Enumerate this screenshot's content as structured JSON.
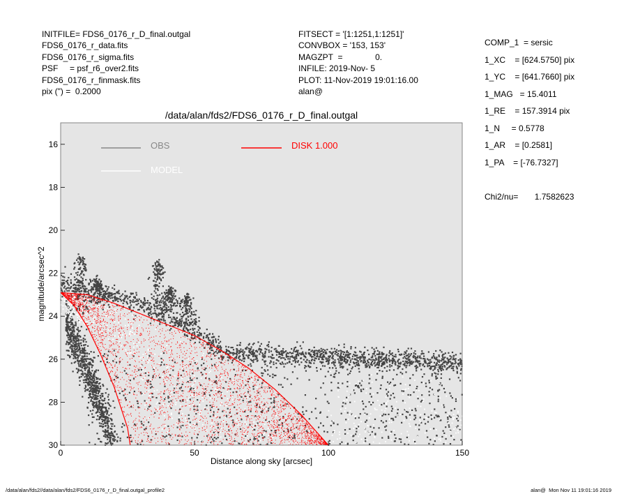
{
  "header_left": [
    "INITFILE= FDS6_0176_r_D_final.outgal",
    "FDS6_0176_r_data.fits",
    "FDS6_0176_r_sigma.fits",
    "PSF     = psf_r6_over2.fits",
    "FDS6_0176_r_finmask.fits",
    "pix (\") =  0.2000"
  ],
  "header_mid": [
    "FITSECT = '[1:1251,1:1251]'",
    "CONVBOX = '153, 153'",
    "MAGZPT  =              0.",
    "INFILE: 2019-Nov- 5",
    "PLOT: 11-Nov-2019 19:01:16.00",
    "alan@"
  ],
  "header_right": [
    "COMP_1  = sersic",
    "1_XC    = [624.5750] pix",
    "1_YC    = [641.7660] pix",
    "1_MAG   = 15.4011",
    "1_RE    = 157.3914 pix",
    "1_N     = 0.5778",
    "1_AR    = [0.2581]",
    "1_PA    = [-76.7327]",
    "",
    "Chi2/nu=       1.7582623"
  ],
  "footer_left": "/data/alan/fds2//data/alan/fds2/FDS6_0176_r_D_final.outgal_profile2",
  "footer_right": "alan@  Mon Nov 11 19:01:16 2019",
  "colors": {
    "background": "#e5e5e5",
    "obs": "#444444",
    "obs_legend": "#888888",
    "model": "#ffffff",
    "disk": "#ff0000"
  },
  "chart_data": {
    "type": "scatter",
    "title": "/data/alan/fds2/FDS6_0176_r_D_final.outgal",
    "xlabel": "Distance along sky [arcsec]",
    "ylabel": "magnitude/arcsec^2",
    "xlim": [
      0,
      150
    ],
    "ylim": [
      30,
      15
    ],
    "y_inverted": true,
    "xticks": [
      0,
      50,
      100,
      150
    ],
    "yticks": [
      16,
      18,
      20,
      22,
      24,
      26,
      28,
      30
    ],
    "grid": false,
    "legend": [
      {
        "label": "OBS",
        "color": "#888888"
      },
      {
        "label": "MODEL",
        "color": "#ffffff"
      },
      {
        "label": "DISK  1.000",
        "color": "#ff0000"
      }
    ],
    "series": [
      {
        "name": "OBS",
        "role": "observed data points",
        "sample_points": [
          [
            0,
            22.9
          ],
          [
            2,
            23.0
          ],
          [
            5,
            23.2
          ],
          [
            7,
            21.5
          ],
          [
            8,
            22.0
          ],
          [
            10,
            23.6
          ],
          [
            12,
            24.4
          ],
          [
            15,
            22.3
          ],
          [
            18,
            23.2
          ],
          [
            20,
            23.0
          ],
          [
            25,
            23.3
          ],
          [
            30,
            23.3
          ],
          [
            34,
            22.5
          ],
          [
            37,
            21.4
          ],
          [
            40,
            23.4
          ],
          [
            45,
            22.6
          ],
          [
            47,
            23.9
          ],
          [
            50,
            24.2
          ],
          [
            55,
            24.6
          ],
          [
            60,
            25.0
          ],
          [
            70,
            25.4
          ],
          [
            80,
            25.6
          ],
          [
            90,
            25.8
          ],
          [
            100,
            26.1
          ],
          [
            110,
            26.3
          ],
          [
            120,
            26.2
          ],
          [
            130,
            26.1
          ],
          [
            140,
            26.0
          ],
          [
            150,
            25.9
          ],
          [
            10,
            26.0
          ],
          [
            15,
            28.0
          ],
          [
            20,
            29.5
          ],
          [
            60,
            28.0
          ],
          [
            100,
            28.0
          ],
          [
            140,
            29.0
          ]
        ]
      },
      {
        "name": "MODEL",
        "role": "model profile (upper envelope)",
        "curve": [
          [
            0,
            22.9
          ],
          [
            10,
            23.0
          ],
          [
            20,
            23.4
          ],
          [
            30,
            23.9
          ],
          [
            40,
            24.4
          ],
          [
            50,
            24.9
          ],
          [
            60,
            25.6
          ],
          [
            70,
            26.4
          ],
          [
            80,
            27.4
          ],
          [
            90,
            28.6
          ],
          [
            100,
            30.0
          ]
        ]
      },
      {
        "name": "DISK  1.000",
        "role": "disk component (upper and lower envelopes)",
        "upper_curve": [
          [
            0,
            22.9
          ],
          [
            10,
            23.0
          ],
          [
            20,
            23.4
          ],
          [
            30,
            23.9
          ],
          [
            40,
            24.4
          ],
          [
            50,
            24.9
          ],
          [
            60,
            25.6
          ],
          [
            70,
            26.4
          ],
          [
            80,
            27.4
          ],
          [
            90,
            28.6
          ],
          [
            100,
            30.0
          ]
        ],
        "lower_curve": [
          [
            0,
            22.9
          ],
          [
            5,
            23.5
          ],
          [
            10,
            24.5
          ],
          [
            15,
            25.8
          ],
          [
            20,
            27.3
          ],
          [
            25,
            29.2
          ],
          [
            26,
            30.0
          ]
        ]
      }
    ]
  }
}
